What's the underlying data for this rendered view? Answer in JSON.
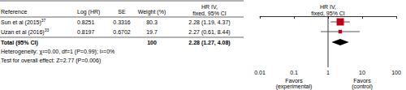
{
  "chart_data": {
    "type": "forest",
    "columns": [
      "Reference",
      "Log (HR)",
      "SE",
      "Weight (%)"
    ],
    "effect_header": [
      "HR IV,",
      "fixed, 95% CI"
    ],
    "plot_header": [
      "HR IV,",
      "fixed, 95% CI"
    ],
    "studies": [
      {
        "reference": "Sun et al (2015)",
        "citation": "37",
        "log_hr": 0.8251,
        "se": 0.3316,
        "weight": 80.3,
        "hr": 2.28,
        "ci": [
          1.19,
          4.37
        ],
        "hr_label": "2.28 (1.19, 4.37)"
      },
      {
        "reference": "Uzan et al (2016)",
        "citation": "33",
        "log_hr": 0.8197,
        "se": 0.6702,
        "weight": 19.7,
        "hr": 2.27,
        "ci": [
          0.61,
          8.44
        ],
        "hr_label": "2.27 (0.61, 8.44)"
      }
    ],
    "total": {
      "label": "Total (95% CI)",
      "weight": 100,
      "hr": 2.28,
      "ci": [
        1.27,
        4.08
      ],
      "hr_label": "2.28 (1.27, 4.08)"
    },
    "heterogeneity": "Heterogeneity: χ²=0.00, df=1 (P=0.99); I²=0%",
    "overall_effect": "Test for overall effect: Z=2.77 (P=0.006)",
    "favors_left": [
      "Favors",
      "(experimental)"
    ],
    "favors_right": [
      "Favors",
      "(control)"
    ],
    "log": "x",
    "xlim": [
      0.01,
      100
    ],
    "xticks": [
      0.01,
      0.1,
      1,
      10,
      100
    ],
    "reference_line": 1,
    "color": "#c00018"
  }
}
